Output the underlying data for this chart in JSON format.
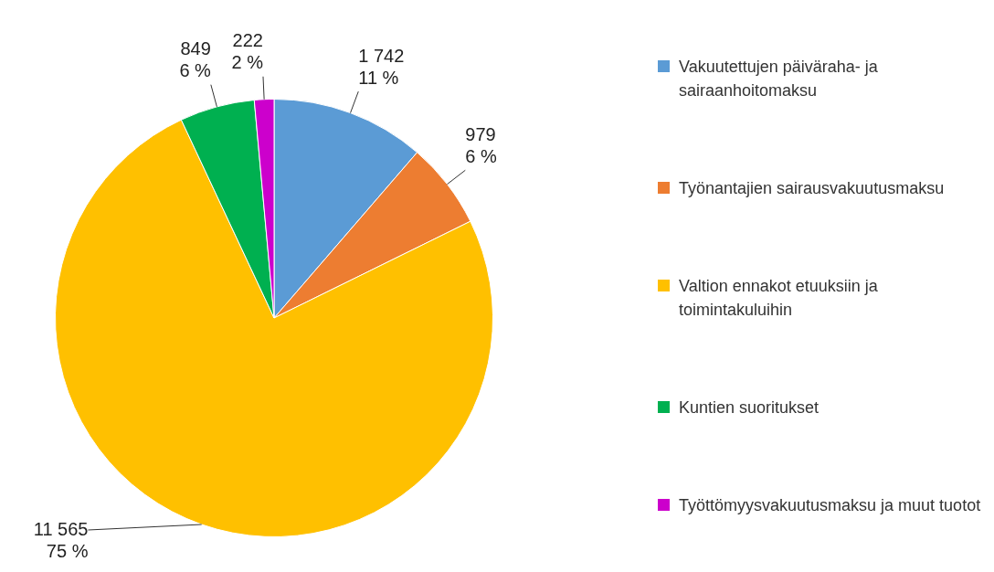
{
  "chart_data": {
    "type": "pie",
    "categories": [
      "Vakuutettujen päiväraha- ja sairaanhoitomaksu",
      "Työnantajien sairausvakuutusmaksu",
      "Valtion ennakot etuuksiin ja toimintakuluihin",
      "Kuntien suoritukset",
      "Työttömyysvakuutusmaksu ja muut tuotot"
    ],
    "values": [
      1742,
      979,
      11565,
      849,
      222
    ],
    "colors": [
      "#5b9bd5",
      "#ed7d31",
      "#ffc000",
      "#00b050",
      "#cc00cc"
    ],
    "value_labels": [
      "1 742\n11 %",
      "979\n6 %",
      "11 565\n75 %",
      "849\n6 %",
      "222\n2 %"
    ],
    "legend": "right"
  }
}
